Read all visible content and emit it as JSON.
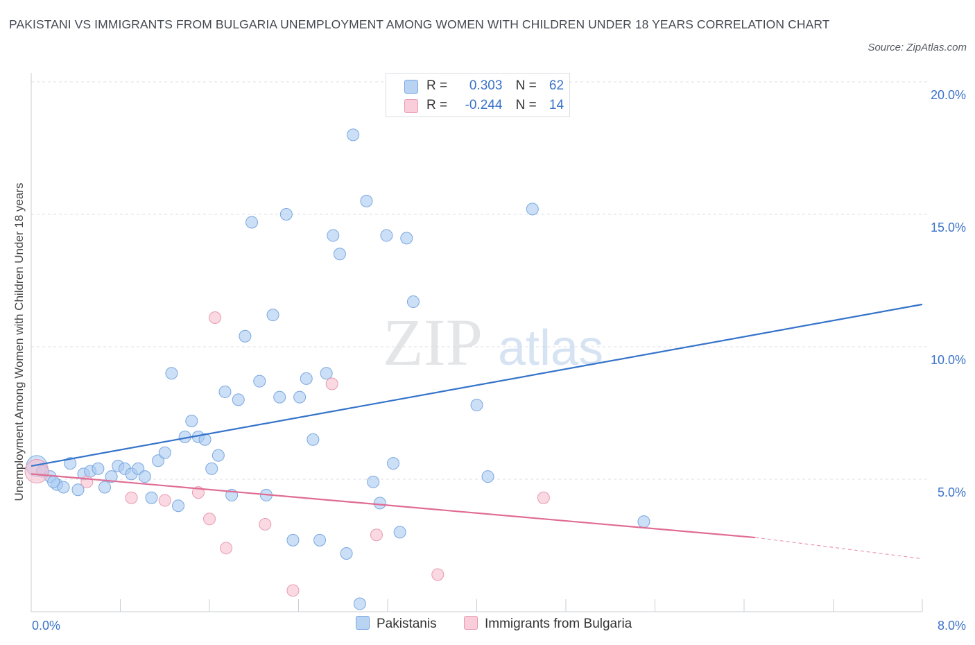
{
  "title": "PAKISTANI VS IMMIGRANTS FROM BULGARIA UNEMPLOYMENT AMONG WOMEN WITH CHILDREN UNDER 18 YEARS CORRELATION CHART",
  "source": "Source: ZipAtlas.com",
  "watermark": {
    "zip": "ZIP",
    "atlas": "atlas"
  },
  "legend": {
    "r_label": "R =",
    "n_label": "N =",
    "rows": [
      {
        "r": "0.303",
        "n": "62",
        "color": "#a8c8f0"
      },
      {
        "r": "-0.244",
        "n": "14",
        "color": "#f5bccb"
      }
    ]
  },
  "colors": {
    "blue_fill": "#a9c9f1",
    "blue_stroke": "#7aa7df",
    "blue_line": "#3473c9",
    "pink_fill": "#f6bfce",
    "pink_stroke": "#e79ab0",
    "pink_line": "#e06b93",
    "axis_tick_text": "#3a72c9",
    "grid": "#dcdfe4"
  },
  "chart_data": {
    "type": "scatter",
    "title": "PAKISTANI VS IMMIGRANTS FROM BULGARIA UNEMPLOYMENT AMONG WOMEN WITH CHILDREN UNDER 18 YEARS CORRELATION CHART",
    "xlabel": "",
    "ylabel": "Unemployment Among Women with Children Under 18 years",
    "xlim": [
      0,
      8
    ],
    "ylim": [
      0,
      20
    ],
    "x_ticks": [
      "0.0%",
      "8.0%"
    ],
    "y_ticks": [
      {
        "value": 5,
        "label": "5.0%"
      },
      {
        "value": 10,
        "label": "10.0%"
      },
      {
        "value": 15,
        "label": "15.0%"
      },
      {
        "value": 20,
        "label": "20.0%"
      }
    ],
    "grid": true,
    "legend_position": "bottom-center",
    "series": [
      {
        "name": "Pakistanis",
        "color": "#a9c9f1",
        "trend": {
          "x": [
            0.0,
            8.0
          ],
          "y": [
            5.5,
            11.6
          ]
        },
        "points": [
          [
            0.05,
            5.5
          ],
          [
            0.17,
            5.1
          ],
          [
            0.23,
            4.8
          ],
          [
            0.29,
            4.7
          ],
          [
            0.35,
            5.6
          ],
          [
            0.42,
            4.6
          ],
          [
            0.47,
            5.2
          ],
          [
            0.53,
            5.3
          ],
          [
            0.6,
            5.4
          ],
          [
            0.66,
            4.7
          ],
          [
            0.72,
            5.1
          ],
          [
            0.78,
            5.5
          ],
          [
            0.84,
            5.4
          ],
          [
            0.9,
            5.2
          ],
          [
            0.96,
            5.4
          ],
          [
            1.02,
            5.1
          ],
          [
            1.08,
            4.3
          ],
          [
            1.14,
            5.7
          ],
          [
            1.2,
            6.0
          ],
          [
            1.26,
            9.0
          ],
          [
            1.32,
            4.0
          ],
          [
            1.38,
            6.6
          ],
          [
            1.44,
            7.2
          ],
          [
            1.5,
            6.6
          ],
          [
            1.56,
            6.5
          ],
          [
            1.62,
            5.4
          ],
          [
            1.68,
            5.9
          ],
          [
            1.74,
            8.3
          ],
          [
            1.8,
            4.4
          ],
          [
            1.86,
            8.0
          ],
          [
            1.92,
            10.4
          ],
          [
            1.98,
            14.7
          ],
          [
            2.05,
            8.7
          ],
          [
            2.11,
            4.4
          ],
          [
            2.17,
            11.2
          ],
          [
            2.23,
            8.1
          ],
          [
            2.29,
            15.0
          ],
          [
            2.35,
            2.7
          ],
          [
            2.41,
            8.1
          ],
          [
            2.47,
            8.8
          ],
          [
            2.53,
            6.5
          ],
          [
            2.59,
            2.7
          ],
          [
            2.65,
            9.0
          ],
          [
            2.71,
            14.2
          ],
          [
            2.77,
            13.5
          ],
          [
            2.83,
            2.2
          ],
          [
            2.89,
            18.0
          ],
          [
            2.95,
            0.3
          ],
          [
            3.01,
            15.5
          ],
          [
            3.07,
            4.9
          ],
          [
            3.13,
            4.1
          ],
          [
            3.19,
            14.2
          ],
          [
            3.25,
            5.6
          ],
          [
            3.31,
            3.0
          ],
          [
            3.37,
            14.1
          ],
          [
            3.43,
            11.7
          ],
          [
            4.0,
            7.8
          ],
          [
            4.1,
            5.1
          ],
          [
            4.5,
            15.2
          ],
          [
            5.5,
            3.4
          ],
          [
            0.1,
            5.3
          ],
          [
            0.2,
            4.9
          ]
        ]
      },
      {
        "name": "Immigrants from Bulgaria",
        "color": "#f6bfce",
        "trend": {
          "x": [
            0.0,
            6.5
          ],
          "y": [
            5.2,
            2.8
          ]
        },
        "trend_dashed": {
          "x": [
            6.5,
            8.0
          ],
          "y": [
            2.8,
            2.0
          ]
        },
        "points": [
          [
            0.05,
            5.3
          ],
          [
            0.5,
            4.9
          ],
          [
            0.9,
            4.3
          ],
          [
            1.2,
            4.2
          ],
          [
            1.5,
            4.5
          ],
          [
            1.6,
            3.5
          ],
          [
            1.65,
            11.1
          ],
          [
            1.75,
            2.4
          ],
          [
            2.1,
            3.3
          ],
          [
            2.35,
            0.8
          ],
          [
            2.7,
            8.6
          ],
          [
            3.1,
            2.9
          ],
          [
            3.65,
            1.4
          ],
          [
            4.6,
            4.3
          ]
        ]
      }
    ]
  },
  "bottom_legend": {
    "items": [
      {
        "label": "Pakistanis",
        "color": "#a9c9f1"
      },
      {
        "label": "Immigrants from Bulgaria",
        "color": "#f6bfce"
      }
    ]
  }
}
